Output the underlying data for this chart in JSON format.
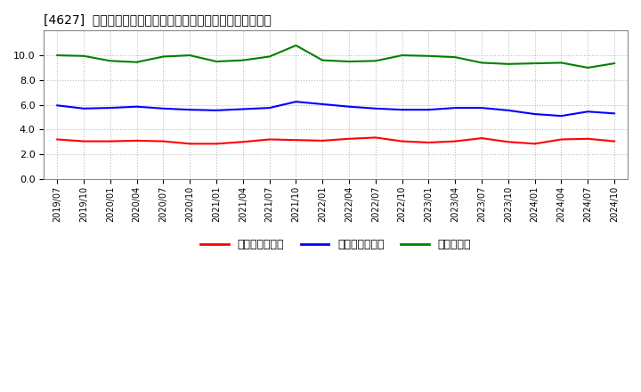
{
  "title": "[4627]  売上債権回転率、買入債務回転率、在庫回転率の推移",
  "ylim": [
    0.0,
    12.0
  ],
  "yticks": [
    0.0,
    2.0,
    4.0,
    6.0,
    8.0,
    10.0
  ],
  "background_color": "#ffffff",
  "plot_bg_color": "#ffffff",
  "grid_color": "#aaaaaa",
  "legend_labels": [
    "売上債権回転率",
    "買入債務回転率",
    "在庫回転率"
  ],
  "line_colors": [
    "#ff0000",
    "#0000ff",
    "#008000"
  ],
  "x_labels": [
    "2019/07",
    "2019/10",
    "2020/01",
    "2020/04",
    "2020/07",
    "2020/10",
    "2021/01",
    "2021/04",
    "2021/07",
    "2021/10",
    "2022/01",
    "2022/04",
    "2022/07",
    "2022/10",
    "2023/01",
    "2023/04",
    "2023/07",
    "2023/10",
    "2024/01",
    "2024/04",
    "2024/07",
    "2024/10"
  ],
  "series_red": [
    3.2,
    3.05,
    3.05,
    3.1,
    3.05,
    2.85,
    2.85,
    3.0,
    3.2,
    3.15,
    3.1,
    3.25,
    3.35,
    3.05,
    2.95,
    3.05,
    3.3,
    3.0,
    2.85,
    3.2,
    3.25,
    3.05
  ],
  "series_blue": [
    5.95,
    5.7,
    5.75,
    5.85,
    5.7,
    5.6,
    5.55,
    5.65,
    5.75,
    6.25,
    6.05,
    5.85,
    5.7,
    5.6,
    5.6,
    5.75,
    5.75,
    5.55,
    5.25,
    5.1,
    5.45,
    5.3
  ],
  "series_green": [
    10.0,
    9.95,
    9.55,
    9.45,
    9.9,
    10.0,
    9.5,
    9.6,
    9.9,
    10.8,
    9.6,
    9.5,
    9.55,
    10.0,
    9.95,
    9.85,
    9.4,
    9.3,
    9.35,
    9.4,
    9.0,
    9.35
  ]
}
